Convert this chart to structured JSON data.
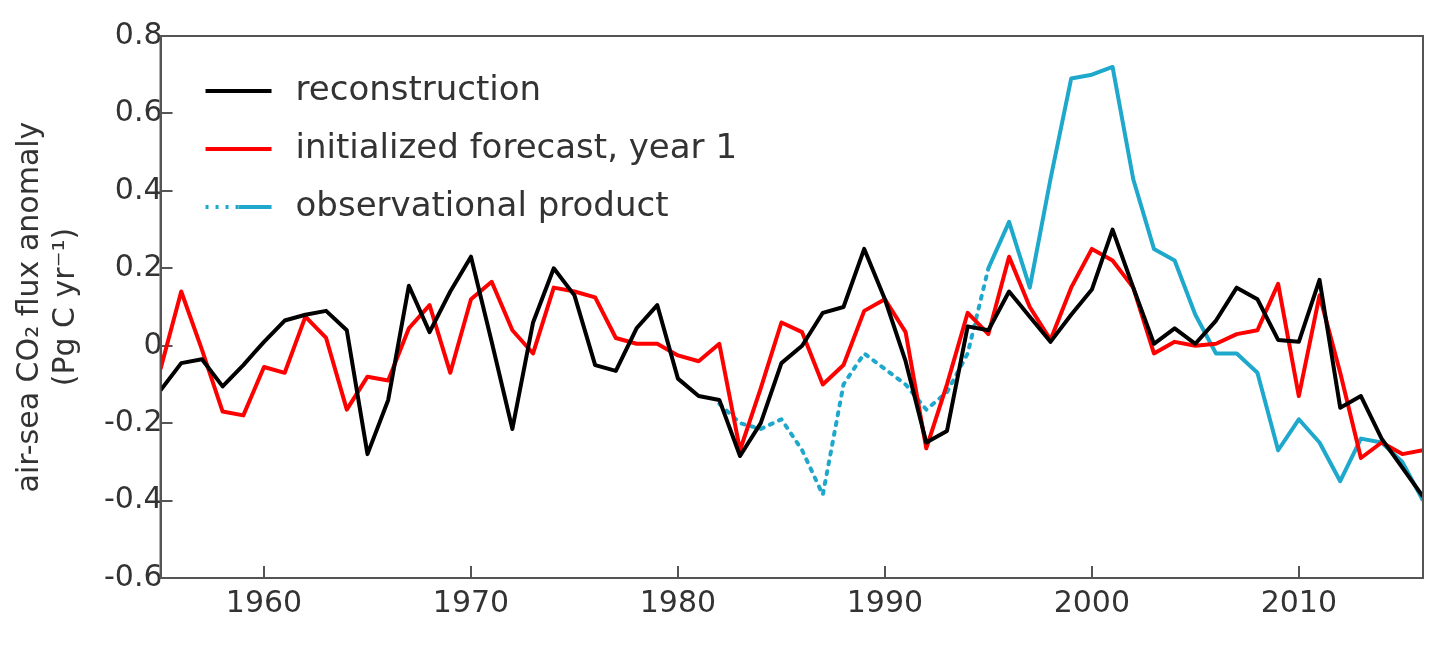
{
  "chart_data": {
    "type": "line",
    "ylabel": [
      "air-sea CO₂ flux anomaly",
      "(Pg C yr⁻¹)"
    ],
    "xlim": [
      1955,
      2016
    ],
    "xticks": [
      1960,
      1970,
      1980,
      1990,
      2000,
      2010
    ],
    "ylim": [
      -0.6,
      0.8
    ],
    "yticks": [
      -0.6,
      -0.4,
      -0.2,
      0,
      0.2,
      0.4,
      0.6,
      0.8
    ],
    "grid": false,
    "legend": "top left",
    "marker": "none",
    "series": [
      {
        "name": "reconstruction",
        "color": "#000000",
        "line_style": "solid",
        "x": [
          1955,
          1956,
          1957,
          1958,
          1959,
          1960,
          1961,
          1962,
          1963,
          1964,
          1965,
          1966,
          1967,
          1968,
          1969,
          1970,
          1971,
          1972,
          1973,
          1974,
          1975,
          1976,
          1977,
          1978,
          1979,
          1980,
          1981,
          1982,
          1983,
          1984,
          1985,
          1986,
          1987,
          1988,
          1989,
          1990,
          1991,
          1992,
          1993,
          1994,
          1995,
          1996,
          1997,
          1998,
          1999,
          2000,
          2001,
          2002,
          2003,
          2004,
          2005,
          2006,
          2007,
          2008,
          2009,
          2010,
          2011,
          2012,
          2013,
          2014,
          2016
        ],
        "values": [
          -0.115,
          -0.045,
          -0.035,
          -0.105,
          -0.05,
          0.01,
          0.065,
          0.08,
          0.09,
          0.04,
          -0.28,
          -0.14,
          0.155,
          0.035,
          0.14,
          0.23,
          0.01,
          -0.215,
          0.06,
          0.2,
          0.13,
          -0.05,
          -0.065,
          0.045,
          0.105,
          -0.085,
          -0.13,
          -0.14,
          -0.285,
          -0.2,
          -0.045,
          0,
          0.085,
          0.1,
          0.25,
          0.12,
          -0.04,
          -0.25,
          -0.22,
          0.05,
          0.04,
          0.14,
          0.075,
          0.01,
          0.08,
          0.145,
          0.3,
          0.15,
          0.005,
          0.045,
          0.005,
          0.065,
          0.15,
          0.12,
          0.015,
          0.01,
          0.17,
          -0.16,
          -0.13,
          -0.24,
          -0.39
        ]
      },
      {
        "name": "initialized forecast, year 1",
        "color": "#ff0000",
        "line_style": "solid",
        "x": [
          1955,
          1956,
          1957,
          1958,
          1959,
          1960,
          1961,
          1962,
          1963,
          1964,
          1965,
          1966,
          1967,
          1968,
          1969,
          1970,
          1971,
          1972,
          1973,
          1974,
          1975,
          1976,
          1977,
          1978,
          1979,
          1980,
          1981,
          1982,
          1983,
          1984,
          1985,
          1986,
          1987,
          1988,
          1989,
          1990,
          1991,
          1992,
          1993,
          1994,
          1995,
          1996,
          1997,
          1998,
          1999,
          2000,
          2001,
          2002,
          2003,
          2004,
          2005,
          2006,
          2007,
          2008,
          2009,
          2010,
          2011,
          2012,
          2013,
          2014,
          2015,
          2016
        ],
        "values": [
          -0.06,
          0.14,
          -0.01,
          -0.17,
          -0.18,
          -0.055,
          -0.07,
          0.075,
          0.02,
          -0.165,
          -0.08,
          -0.09,
          0.045,
          0.105,
          -0.07,
          0.12,
          0.165,
          0.04,
          -0.02,
          0.15,
          0.14,
          0.125,
          0.02,
          0.005,
          0.005,
          -0.025,
          -0.04,
          0.005,
          -0.27,
          -0.11,
          0.06,
          0.035,
          -0.1,
          -0.05,
          0.09,
          0.12,
          0.035,
          -0.265,
          -0.1,
          0.085,
          0.03,
          0.23,
          0.1,
          0.015,
          0.15,
          0.25,
          0.22,
          0.15,
          -0.02,
          0.01,
          0,
          0.005,
          0.03,
          0.04,
          0.16,
          -0.13,
          0.13,
          -0.07,
          -0.29,
          -0.25,
          -0.28,
          -0.27
        ]
      },
      {
        "color": "#1ea8cc",
        "line_style": "dotted",
        "x": [
          1982,
          1983,
          1984,
          1985,
          1986,
          1987,
          1988,
          1989,
          1990,
          1991,
          1992,
          1993,
          1994,
          1995
        ],
        "values": [
          -0.15,
          -0.2,
          -0.215,
          -0.19,
          -0.27,
          -0.385,
          -0.1,
          -0.02,
          -0.06,
          -0.1,
          -0.165,
          -0.12,
          -0.02,
          0.2
        ]
      },
      {
        "name": "observational product",
        "color": "#1ea8cc",
        "line_style": "solid",
        "x": [
          1995,
          1996,
          1997,
          1998,
          1999,
          2000,
          2001,
          2002,
          2003,
          2004,
          2005,
          2006,
          2007,
          2008,
          2009,
          2010,
          2011,
          2012,
          2013,
          2014,
          2015,
          2016
        ],
        "values": [
          0.2,
          0.32,
          0.15,
          0.43,
          0.69,
          0.7,
          0.72,
          0.43,
          0.25,
          0.22,
          0.08,
          -0.02,
          -0.02,
          -0.07,
          -0.27,
          -0.19,
          -0.25,
          -0.35,
          -0.24,
          -0.25,
          -0.3,
          -0.4
        ]
      }
    ]
  }
}
